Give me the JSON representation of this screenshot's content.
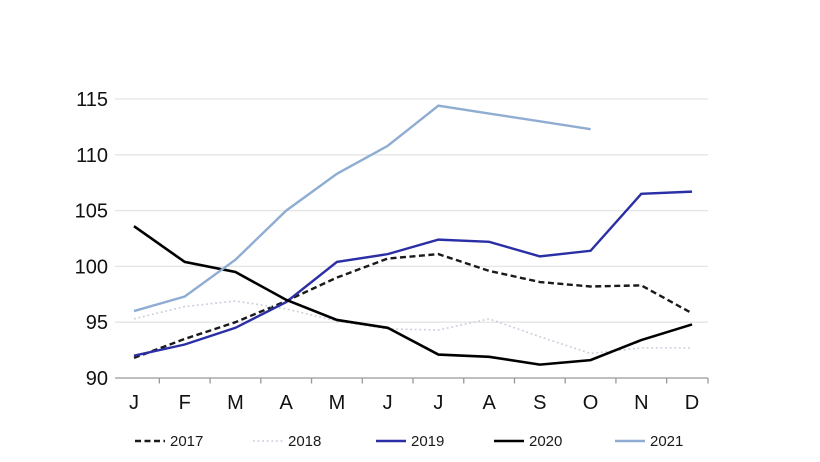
{
  "chart_data": {
    "type": "line",
    "title": "",
    "x_categories": [
      "J",
      "F",
      "M",
      "A",
      "M",
      "J",
      "J",
      "A",
      "S",
      "O",
      "N",
      "D"
    ],
    "ylim": [
      90,
      115
    ],
    "y_ticks": [
      90,
      95,
      100,
      105,
      110,
      115
    ],
    "grid": "horizontal",
    "legend_position": "bottom",
    "series": [
      {
        "name": "2017",
        "color": "#1a1a1a",
        "style": "dashed",
        "values": [
          91.8,
          93.5,
          95.0,
          96.9,
          99.0,
          100.7,
          101.1,
          99.6,
          98.6,
          98.2,
          98.3,
          95.8
        ]
      },
      {
        "name": "2018",
        "color": "#c6cedb",
        "style": "dotted",
        "values": [
          95.3,
          96.4,
          96.9,
          96.2,
          95.1,
          94.4,
          94.3,
          95.3,
          93.7,
          92.2,
          92.7,
          92.7
        ]
      },
      {
        "name": "2019",
        "color": "#2b2fa5",
        "style": "solid",
        "values": [
          92.0,
          93.0,
          94.5,
          96.8,
          100.4,
          101.1,
          102.4,
          102.2,
          100.9,
          101.4,
          106.5,
          106.7
        ]
      },
      {
        "name": "2020",
        "color": "#000000",
        "style": "solid",
        "values": [
          103.6,
          100.4,
          99.5,
          97.0,
          95.2,
          94.5,
          92.1,
          91.9,
          91.2,
          91.6,
          93.4,
          94.8
        ]
      },
      {
        "name": "2021",
        "color": "#8fadd2",
        "style": "solid",
        "values": [
          96.0,
          97.3,
          100.6,
          105.0,
          108.3,
          110.8,
          114.4,
          113.7,
          113.0,
          112.3,
          null,
          null
        ]
      }
    ]
  },
  "colors": {
    "background": "#ffffff",
    "grid": "#e4e4e4",
    "axis": "#999999",
    "tick": "#999999",
    "label": "#111111"
  }
}
